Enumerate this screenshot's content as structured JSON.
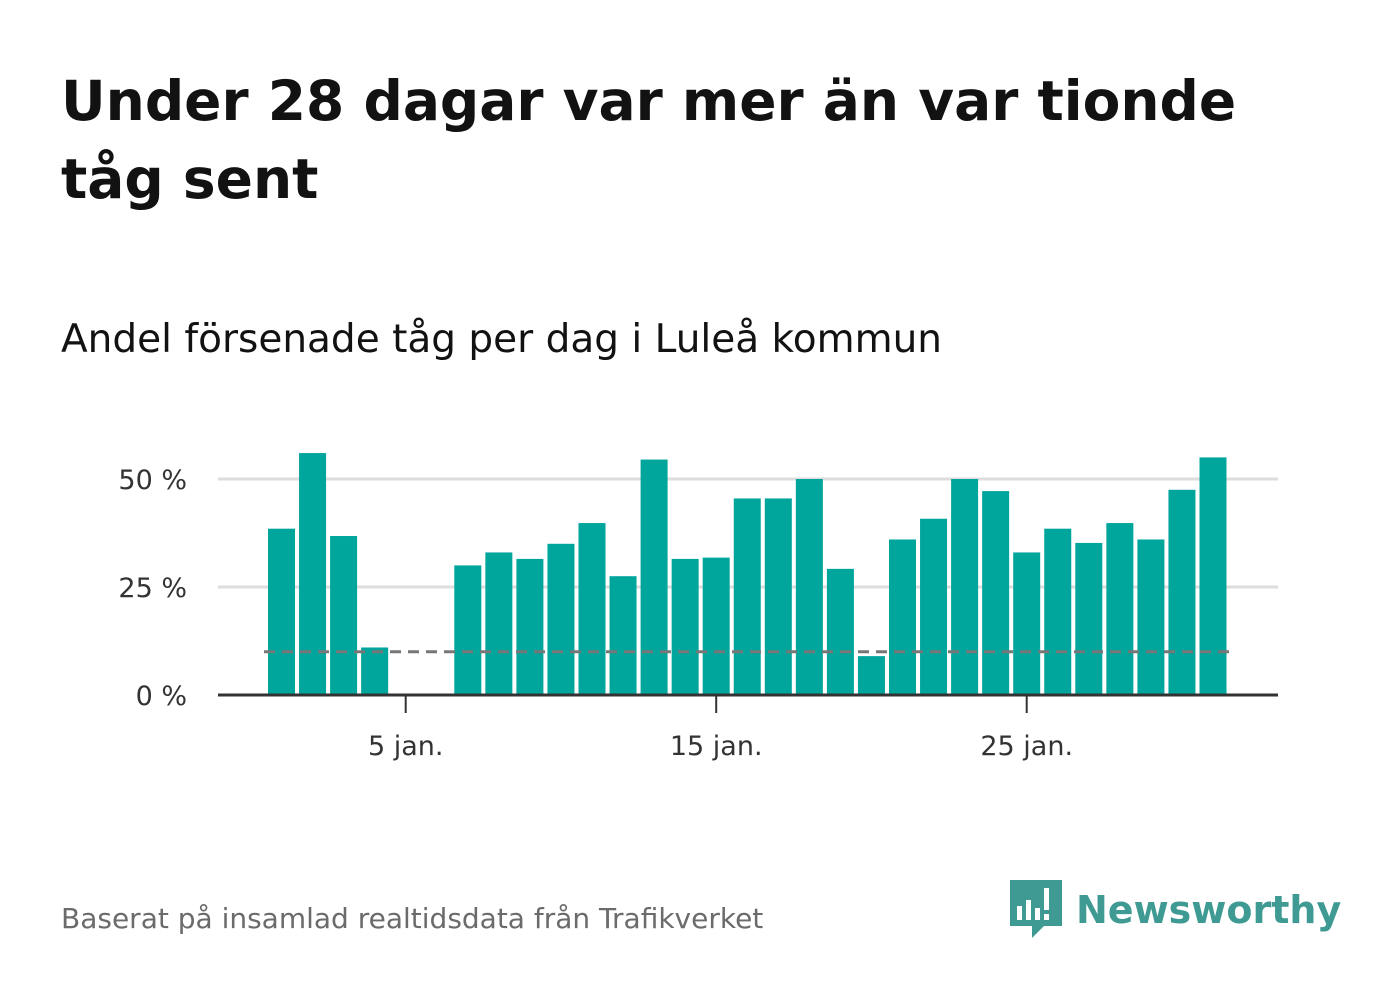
{
  "header": {
    "title": "Under 28 dagar var mer än var tionde tåg sent",
    "subtitle": "Andel försenade tåg per dag i Luleå kommun"
  },
  "footer": {
    "source": "Baserat på insamlad realtidsdata från Trafikverket",
    "brand": "Newsworthy",
    "brand_icon": "bar-chart-speech-bubble-icon"
  },
  "colors": {
    "bar": "#00a59c",
    "reference_line": "#777777",
    "grid": "#dddddd",
    "axis": "#333333",
    "brand": "#3f9a94"
  },
  "chart_data": {
    "type": "bar",
    "x": [
      1,
      2,
      3,
      4,
      5,
      6,
      7,
      8,
      9,
      10,
      11,
      12,
      13,
      14,
      15,
      16,
      17,
      18,
      19,
      20,
      21,
      22,
      23,
      24,
      25,
      26,
      27,
      28,
      29,
      30,
      31
    ],
    "values": [
      38.5,
      56,
      36.8,
      11,
      null,
      null,
      30,
      33,
      31.5,
      35,
      39.8,
      27.5,
      54.5,
      31.5,
      31.8,
      45.5,
      45.5,
      50,
      29.2,
      9,
      36,
      40.8,
      50,
      47.2,
      33,
      38.5,
      35.2,
      39.8,
      36,
      47.5,
      55
    ],
    "reference_line": {
      "value": 10,
      "style": "dashed"
    },
    "xticks": [
      {
        "value": 5,
        "label": "5 jan."
      },
      {
        "value": 15,
        "label": "15 jan."
      },
      {
        "value": 25,
        "label": "25 jan."
      }
    ],
    "yticks": [
      {
        "value": 0,
        "label": "0 %"
      },
      {
        "value": 25,
        "label": "25 %"
      },
      {
        "value": 50,
        "label": "50 %"
      }
    ],
    "ylim": [
      0,
      60
    ],
    "grid": true,
    "legend": "none"
  }
}
